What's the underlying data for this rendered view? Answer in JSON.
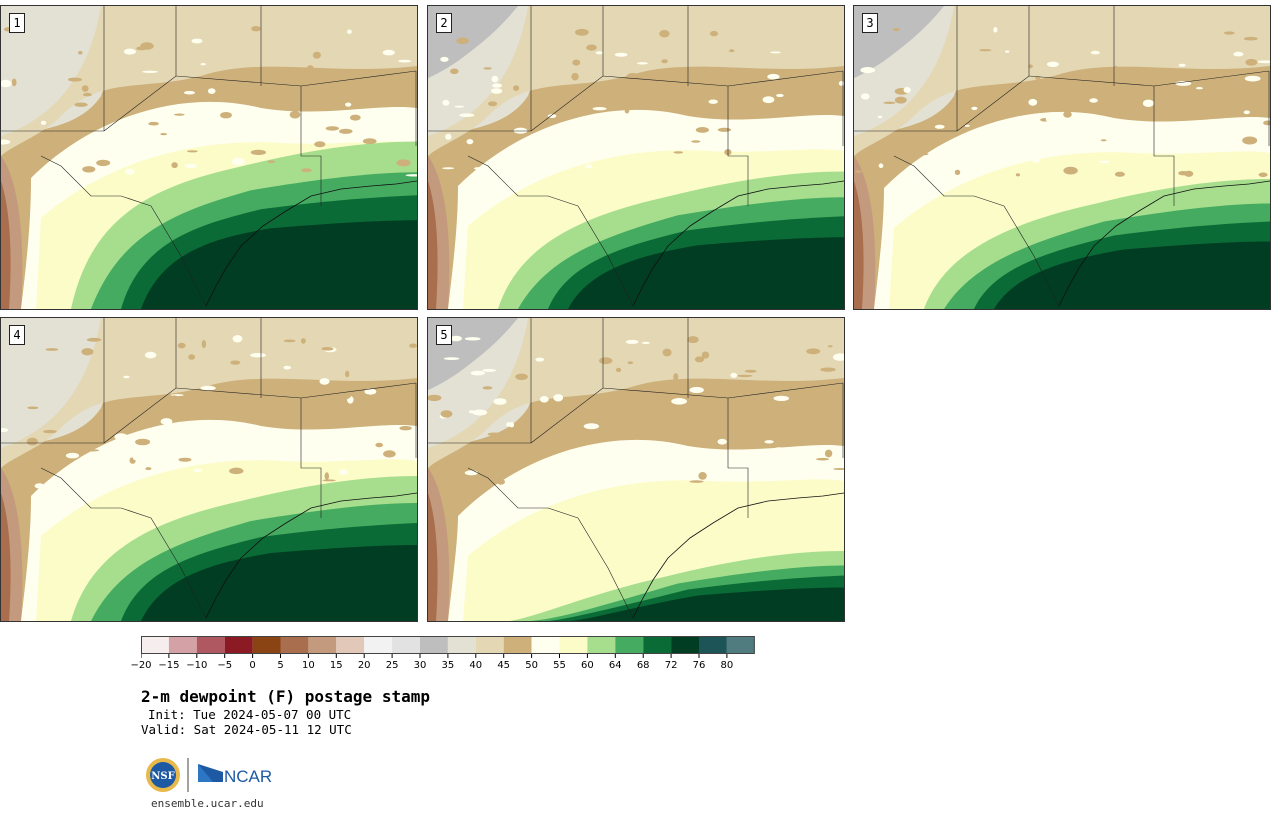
{
  "product": {
    "title": "2-m dewpoint (F) postage stamp",
    "init": "Init: Tue 2024-05-07 00 UTC",
    "valid": "Valid: Sat 2024-05-11 12 UTC",
    "site": "ensemble.ucar.edu",
    "logo_text": "NCAR",
    "nsf_text": "NSF"
  },
  "members": [
    {
      "label": "1",
      "moist": 0.95
    },
    {
      "label": "2",
      "moist": 0.75
    },
    {
      "label": "3",
      "moist": 0.7
    },
    {
      "label": "4",
      "moist": 0.8
    },
    {
      "label": "5",
      "moist": 0.3
    }
  ],
  "colorbar": {
    "ticks": [
      "−20",
      "−15",
      "−10",
      "−5",
      "0",
      "5",
      "10",
      "15",
      "20",
      "25",
      "30",
      "35",
      "40",
      "45",
      "50",
      "55",
      "60",
      "64",
      "68",
      "72",
      "76",
      "80"
    ],
    "colors": [
      "#f6eeee",
      "#d4a2a6",
      "#b05862",
      "#8c1a24",
      "#8a4414",
      "#a86e4e",
      "#c49a7e",
      "#e2c8b8",
      "#f2f2f2",
      "#e2e2e2",
      "#bebebe",
      "#e2e1d4",
      "#e4d7b4",
      "#cdb07a",
      "#fffff0",
      "#fbfcc8",
      "#a6de8e",
      "#45ab60",
      "#0b6b36",
      "#003d22",
      "#1d5458",
      "#507c80"
    ]
  }
}
